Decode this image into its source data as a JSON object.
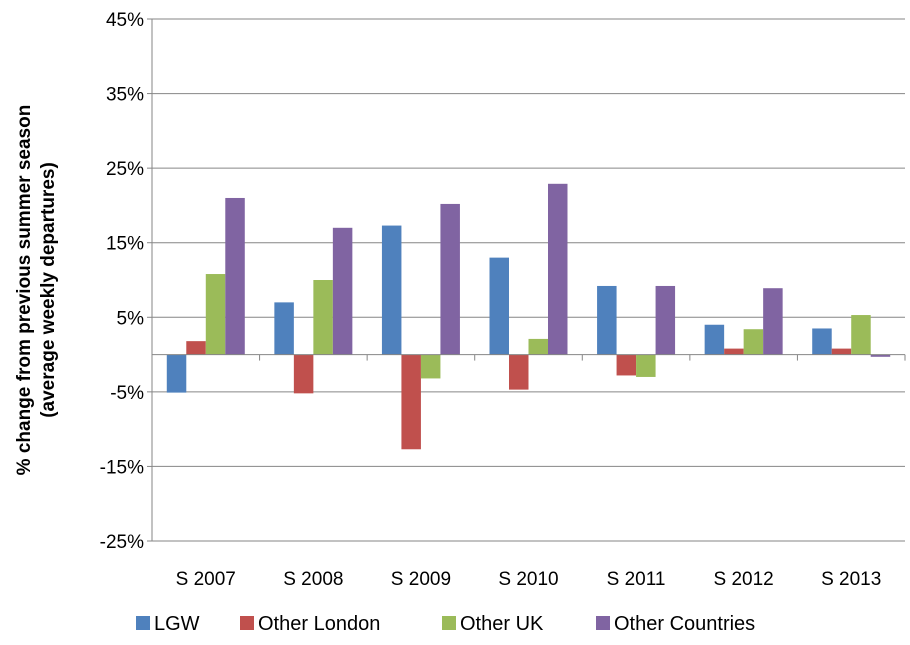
{
  "chart_data": {
    "type": "bar",
    "title": "",
    "xlabel": "",
    "ylabel_lines": [
      "% change from previous summer season",
      "(average weekly departures)"
    ],
    "categories": [
      "S 2007",
      "S 2008",
      "S 2009",
      "S 2010",
      "S 2011",
      "S 2012",
      "S 2013"
    ],
    "ylim": [
      -25,
      45
    ],
    "yticks": [
      45,
      35,
      25,
      15,
      5,
      -5,
      -15,
      -25
    ],
    "ytick_labels": [
      "45%",
      "35%",
      "25%",
      "15%",
      "5%",
      "-5%",
      "-15%",
      "-25%"
    ],
    "grid": "horizontal",
    "legend_position": "bottom",
    "series": [
      {
        "name": "LGW",
        "color": "#4F81BD",
        "values": [
          -5.1,
          7.0,
          17.3,
          13.0,
          9.2,
          4.0,
          3.5
        ]
      },
      {
        "name": "Other London",
        "color": "#C0504D",
        "values": [
          1.8,
          -5.2,
          -12.7,
          -4.7,
          -2.8,
          0.8,
          0.8
        ]
      },
      {
        "name": "Other UK",
        "color": "#9BBB59",
        "values": [
          10.8,
          10.0,
          -3.2,
          2.1,
          -3.0,
          3.4,
          5.3
        ]
      },
      {
        "name": "Other Countries",
        "color": "#8064A2",
        "values": [
          21.0,
          17.0,
          20.2,
          22.9,
          9.2,
          8.9,
          -0.3
        ]
      }
    ]
  }
}
